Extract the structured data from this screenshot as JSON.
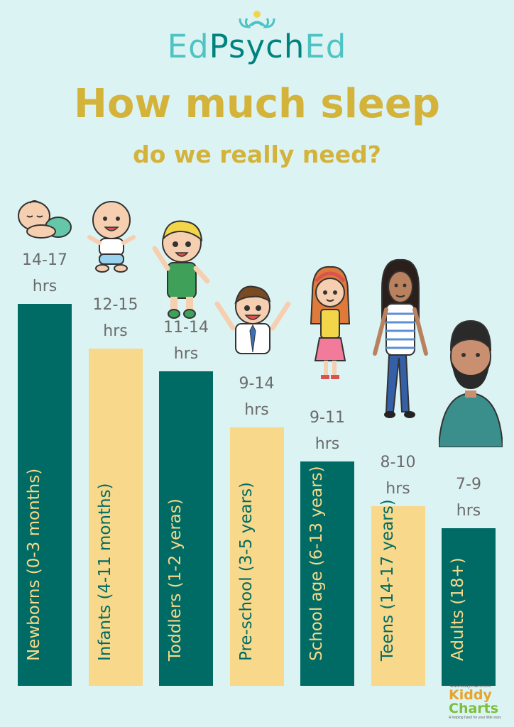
{
  "logo": {
    "part1": "Ed",
    "part2": "Psych",
    "part3": "Ed"
  },
  "heading": {
    "title": "How much sleep",
    "subtitle": "do we really need?"
  },
  "colors": {
    "dark": "#006b64",
    "light": "#f8d88a",
    "dark_text": "#f8d88a",
    "light_text": "#006b64"
  },
  "chart_data": {
    "type": "bar",
    "title": "How much sleep do we really need?",
    "xlabel": "",
    "ylabel": "",
    "ylim": [
      0,
      17
    ],
    "grid": false,
    "legend": "none",
    "categories": [
      "Newborns (0-3 months)",
      "Infants (4-11 months)",
      "Toddlers (1-2 yeras)",
      "Pre-school (3-5 years)",
      "School age (6-13 years)",
      "Teens (14-17 years)",
      "Adults (18+)"
    ],
    "value_labels": [
      "14-17",
      "12-15",
      "11-14",
      "9-14",
      "9-11",
      "8-10",
      "7-9"
    ],
    "unit_label": "hrs",
    "values": [
      17,
      15,
      14,
      11.5,
      10,
      8,
      7
    ],
    "ranges": [
      [
        14,
        17
      ],
      [
        12,
        15
      ],
      [
        11,
        14
      ],
      [
        9,
        14
      ],
      [
        9,
        11
      ],
      [
        8,
        10
      ],
      [
        7,
        9
      ]
    ],
    "icons": [
      "sleeping-baby-icon",
      "infant-icon",
      "toddler-icon",
      "preschooler-icon",
      "school-girl-icon",
      "teen-girl-icon",
      "adult-man-icon"
    ]
  },
  "footer": {
    "url": "www.kiddycharts.com",
    "brand1": "Kiddy",
    "brand2": "Charts",
    "tagline": "A helping hand for your little stars"
  }
}
